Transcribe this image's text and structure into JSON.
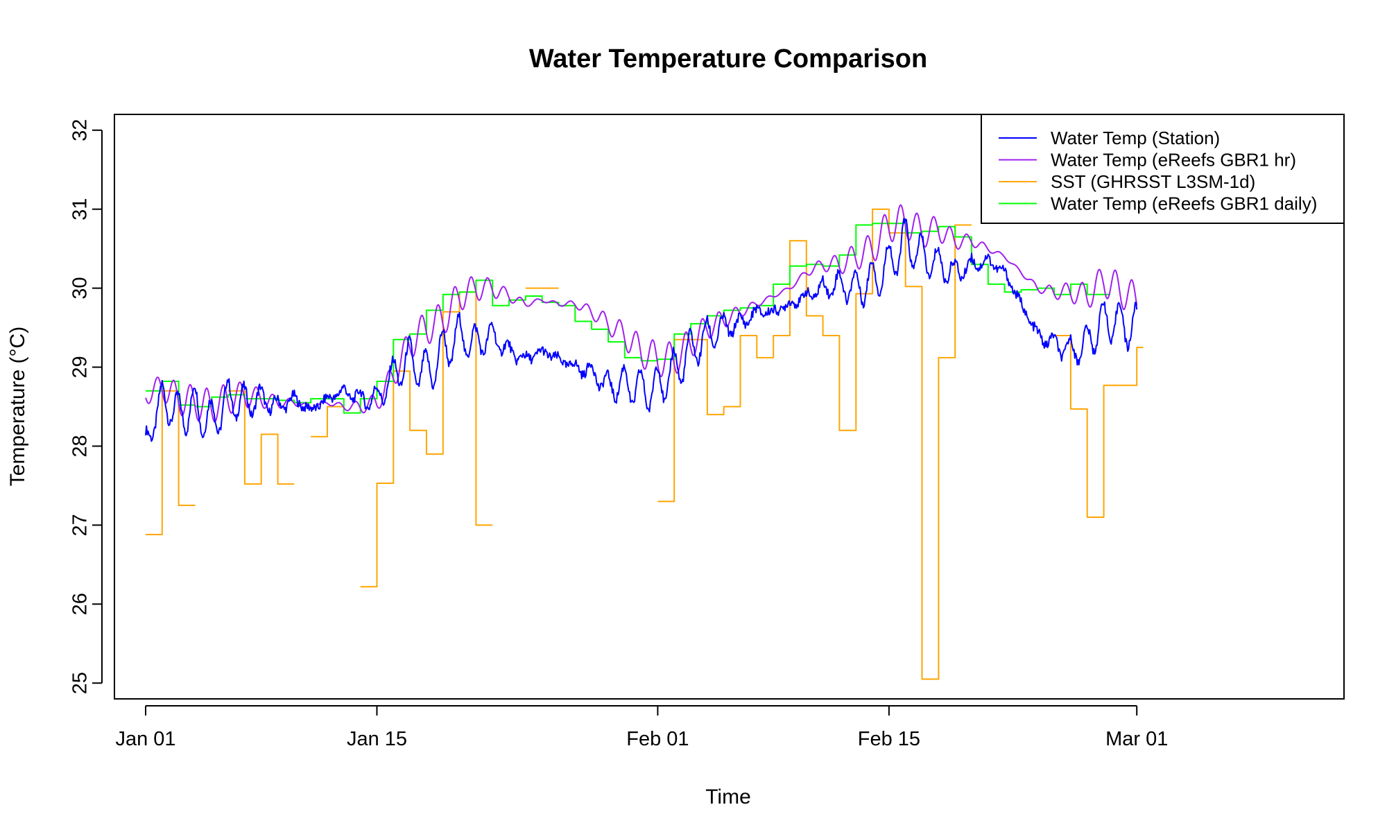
{
  "chart_data": {
    "type": "line",
    "title": "Water Temperature Comparison",
    "xlabel": "Time",
    "ylabel": "Temperature (°C)",
    "x_ticks": [
      "Jan 01",
      "Jan 15",
      "Feb 01",
      "Feb 15",
      "Mar 01"
    ],
    "y_ticks": [
      "25",
      "26",
      "27",
      "28",
      "29",
      "30",
      "31",
      "32"
    ],
    "ylim": [
      24.8,
      32.2
    ],
    "legend_position": "top-right",
    "colors": {
      "station": "#0000ff",
      "ereefs_hr": "#a020f0",
      "sst": "#ffa500",
      "ereefs_daily": "#00ff00"
    },
    "series": [
      {
        "name": "Water Temp (Station)",
        "key": "station",
        "style": "line",
        "points": [
          [
            "Jan 01",
            28.05
          ],
          [
            "Jan 02",
            28.6
          ],
          [
            "Jan 03",
            28.4
          ],
          [
            "Jan 04",
            28.5
          ],
          [
            "Jan 05",
            28.3
          ],
          [
            "Jan 06",
            28.6
          ],
          [
            "Jan 07",
            28.55
          ],
          [
            "Jan 08",
            28.6
          ],
          [
            "Jan 09",
            28.5
          ],
          [
            "Jan 10",
            28.6
          ],
          [
            "Jan 11",
            28.45
          ],
          [
            "Jan 12",
            28.6
          ],
          [
            "Jan 13",
            28.7
          ],
          [
            "Jan 14",
            28.6
          ],
          [
            "Jan 15",
            28.6
          ],
          [
            "Jan 16",
            28.9
          ],
          [
            "Jan 17",
            29.1
          ],
          [
            "Jan 18",
            28.9
          ],
          [
            "Jan 19",
            29.2
          ],
          [
            "Jan 20",
            29.4
          ],
          [
            "Jan 21",
            29.3
          ],
          [
            "Jan 22",
            29.4
          ],
          [
            "Jan 23",
            29.2
          ],
          [
            "Jan 24",
            29.1
          ],
          [
            "Jan 25",
            29.2
          ],
          [
            "Jan 26",
            29.1
          ],
          [
            "Jan 27",
            29.0
          ],
          [
            "Jan 28",
            28.95
          ],
          [
            "Jan 29",
            28.75
          ],
          [
            "Jan 30",
            28.8
          ],
          [
            "Jan 31",
            28.7
          ],
          [
            "Feb 01",
            28.75
          ],
          [
            "Feb 02",
            28.95
          ],
          [
            "Feb 03",
            29.2
          ],
          [
            "Feb 04",
            29.4
          ],
          [
            "Feb 05",
            29.5
          ],
          [
            "Feb 06",
            29.55
          ],
          [
            "Feb 07",
            29.7
          ],
          [
            "Feb 08",
            29.7
          ],
          [
            "Feb 09",
            29.8
          ],
          [
            "Feb 10",
            29.9
          ],
          [
            "Feb 11",
            30.0
          ],
          [
            "Feb 12",
            30.05
          ],
          [
            "Feb 13",
            30.0
          ],
          [
            "Feb 14",
            30.1
          ],
          [
            "Feb 15",
            30.3
          ],
          [
            "Feb 16",
            30.6
          ],
          [
            "Feb 17",
            30.4
          ],
          [
            "Feb 18",
            30.3
          ],
          [
            "Feb 19",
            30.2
          ],
          [
            "Feb 20",
            30.3
          ],
          [
            "Feb 21",
            30.35
          ],
          [
            "Feb 22",
            30.2
          ],
          [
            "Feb 23",
            29.8
          ],
          [
            "Feb 24",
            29.4
          ],
          [
            "Feb 25",
            29.3
          ],
          [
            "Feb 26",
            29.2
          ],
          [
            "Feb 27",
            29.3
          ],
          [
            "Feb 28",
            29.6
          ],
          [
            "Mar 01",
            29.5
          ]
        ]
      },
      {
        "name": "Water Temp (eReefs GBR1 hr)",
        "key": "ereefs_hr",
        "style": "line",
        "points": [
          [
            "Jan 01",
            28.65
          ],
          [
            "Jan 02",
            28.75
          ],
          [
            "Jan 03",
            28.6
          ],
          [
            "Jan 04",
            28.55
          ],
          [
            "Jan 05",
            28.5
          ],
          [
            "Jan 06",
            28.6
          ],
          [
            "Jan 07",
            28.65
          ],
          [
            "Jan 08",
            28.6
          ],
          [
            "Jan 09",
            28.55
          ],
          [
            "Jan 10",
            28.55
          ],
          [
            "Jan 11",
            28.5
          ],
          [
            "Jan 12",
            28.55
          ],
          [
            "Jan 13",
            28.5
          ],
          [
            "Jan 14",
            28.5
          ],
          [
            "Jan 15",
            28.55
          ],
          [
            "Jan 16",
            28.9
          ],
          [
            "Jan 17",
            29.3
          ],
          [
            "Jan 18",
            29.5
          ],
          [
            "Jan 19",
            29.6
          ],
          [
            "Jan 20",
            29.9
          ],
          [
            "Jan 21",
            30.0
          ],
          [
            "Jan 22",
            30.0
          ],
          [
            "Jan 23",
            29.9
          ],
          [
            "Jan 24",
            29.8
          ],
          [
            "Jan 25",
            29.85
          ],
          [
            "Jan 26",
            29.8
          ],
          [
            "Jan 27",
            29.8
          ],
          [
            "Jan 28",
            29.7
          ],
          [
            "Jan 29",
            29.55
          ],
          [
            "Jan 30",
            29.4
          ],
          [
            "Jan 31",
            29.2
          ],
          [
            "Feb 01",
            29.1
          ],
          [
            "Feb 02",
            29.1
          ],
          [
            "Feb 03",
            29.3
          ],
          [
            "Feb 04",
            29.5
          ],
          [
            "Feb 05",
            29.6
          ],
          [
            "Feb 06",
            29.7
          ],
          [
            "Feb 07",
            29.8
          ],
          [
            "Feb 08",
            29.9
          ],
          [
            "Feb 09",
            30.0
          ],
          [
            "Feb 10",
            30.2
          ],
          [
            "Feb 11",
            30.3
          ],
          [
            "Feb 12",
            30.3
          ],
          [
            "Feb 13",
            30.4
          ],
          [
            "Feb 14",
            30.5
          ],
          [
            "Feb 15",
            30.8
          ],
          [
            "Feb 16",
            30.85
          ],
          [
            "Feb 17",
            30.7
          ],
          [
            "Feb 18",
            30.75
          ],
          [
            "Feb 19",
            30.6
          ],
          [
            "Feb 20",
            30.6
          ],
          [
            "Feb 21",
            30.5
          ],
          [
            "Feb 22",
            30.4
          ],
          [
            "Feb 23",
            30.2
          ],
          [
            "Feb 24",
            30.0
          ],
          [
            "Feb 25",
            29.95
          ],
          [
            "Feb 26",
            29.95
          ],
          [
            "Feb 27",
            29.9
          ],
          [
            "Feb 28",
            30.1
          ],
          [
            "Mar 01",
            29.85
          ]
        ]
      },
      {
        "name": "SST (GHRSST L3SM-1d)",
        "key": "sst",
        "style": "step",
        "points": [
          [
            "Jan 01",
            26.88
          ],
          [
            "Jan 02",
            28.7
          ],
          [
            "Jan 03",
            27.25
          ],
          [
            "Jan 04",
            null
          ],
          [
            "Jan 06",
            28.7
          ],
          [
            "Jan 07",
            28.65
          ],
          [
            "Jan 07",
            27.52
          ],
          [
            "Jan 08",
            28.15
          ],
          [
            "Jan 09",
            27.52
          ],
          [
            "Jan 10",
            null
          ],
          [
            "Jan 11",
            28.12
          ],
          [
            "Jan 12",
            28.5
          ],
          [
            "Jan 13",
            null
          ],
          [
            "Jan 14",
            26.22
          ],
          [
            "Jan 15",
            27.53
          ],
          [
            "Jan 16",
            28.95
          ],
          [
            "Jan 17",
            28.2
          ],
          [
            "Jan 18",
            27.9
          ],
          [
            "Jan 19",
            29.7
          ],
          [
            "Jan 20",
            29.95
          ],
          [
            "Jan 21",
            27.0
          ],
          [
            "Jan 22",
            null
          ],
          [
            "Jan 24",
            30.0
          ],
          [
            "Jan 26",
            null
          ],
          [
            "Feb 01",
            27.3
          ],
          [
            "Feb 02",
            29.35
          ],
          [
            "Feb 03",
            29.35
          ],
          [
            "Feb 04",
            28.4
          ],
          [
            "Feb 05",
            28.5
          ],
          [
            "Feb 06",
            29.4
          ],
          [
            "Feb 07",
            29.12
          ],
          [
            "Feb 08",
            29.4
          ],
          [
            "Feb 09",
            30.6
          ],
          [
            "Feb 10",
            29.65
          ],
          [
            "Feb 11",
            29.4
          ],
          [
            "Feb 12",
            28.2
          ],
          [
            "Feb 13",
            29.93
          ],
          [
            "Feb 14",
            31.0
          ],
          [
            "Feb 15",
            30.7
          ],
          [
            "Feb 16",
            30.02
          ],
          [
            "Feb 17",
            25.05
          ],
          [
            "Feb 18",
            29.12
          ],
          [
            "Feb 19",
            30.8
          ],
          [
            "Feb 20",
            null
          ],
          [
            "Feb 25",
            29.4
          ],
          [
            "Feb 26",
            28.47
          ],
          [
            "Feb 27",
            27.1
          ],
          [
            "Feb 28",
            28.77
          ],
          [
            "Mar 01",
            29.25
          ]
        ]
      },
      {
        "name": "Water Temp (eReefs GBR1 daily)",
        "key": "ereefs_daily",
        "style": "step",
        "points": [
          [
            "Jan 01",
            28.7
          ],
          [
            "Jan 02",
            28.82
          ],
          [
            "Jan 03",
            28.52
          ],
          [
            "Jan 04",
            28.5
          ],
          [
            "Jan 05",
            28.62
          ],
          [
            "Jan 06",
            28.65
          ],
          [
            "Jan 07",
            28.6
          ],
          [
            "Jan 08",
            28.6
          ],
          [
            "Jan 09",
            28.58
          ],
          [
            "Jan 10",
            28.55
          ],
          [
            "Jan 11",
            28.6
          ],
          [
            "Jan 12",
            28.6
          ],
          [
            "Jan 13",
            28.42
          ],
          [
            "Jan 14",
            28.6
          ],
          [
            "Jan 15",
            28.82
          ],
          [
            "Jan 16",
            29.35
          ],
          [
            "Jan 17",
            29.42
          ],
          [
            "Jan 18",
            29.72
          ],
          [
            "Jan 19",
            29.92
          ],
          [
            "Jan 20",
            29.95
          ],
          [
            "Jan 21",
            30.1
          ],
          [
            "Jan 22",
            29.78
          ],
          [
            "Jan 23",
            29.85
          ],
          [
            "Jan 24",
            29.9
          ],
          [
            "Jan 25",
            29.82
          ],
          [
            "Jan 26",
            29.78
          ],
          [
            "Jan 27",
            29.58
          ],
          [
            "Jan 28",
            29.48
          ],
          [
            "Jan 29",
            29.32
          ],
          [
            "Jan 30",
            29.12
          ],
          [
            "Jan 31",
            29.08
          ],
          [
            "Feb 01",
            29.1
          ],
          [
            "Feb 02",
            29.42
          ],
          [
            "Feb 03",
            29.55
          ],
          [
            "Feb 04",
            29.65
          ],
          [
            "Feb 05",
            29.72
          ],
          [
            "Feb 06",
            29.75
          ],
          [
            "Feb 07",
            29.78
          ],
          [
            "Feb 08",
            30.05
          ],
          [
            "Feb 09",
            30.28
          ],
          [
            "Feb 10",
            30.3
          ],
          [
            "Feb 11",
            30.28
          ],
          [
            "Feb 12",
            30.42
          ],
          [
            "Feb 13",
            30.8
          ],
          [
            "Feb 14",
            30.82
          ],
          [
            "Feb 15",
            30.82
          ],
          [
            "Feb 16",
            30.7
          ],
          [
            "Feb 17",
            30.72
          ],
          [
            "Feb 18",
            30.78
          ],
          [
            "Feb 19",
            30.65
          ],
          [
            "Feb 20",
            30.3
          ],
          [
            "Feb 21",
            30.05
          ],
          [
            "Feb 22",
            29.95
          ],
          [
            "Feb 23",
            29.98
          ],
          [
            "Feb 24",
            30.0
          ],
          [
            "Feb 25",
            29.92
          ],
          [
            "Feb 26",
            30.05
          ],
          [
            "Feb 27",
            29.92
          ],
          [
            "Feb 28",
            29.92
          ]
        ]
      }
    ]
  }
}
